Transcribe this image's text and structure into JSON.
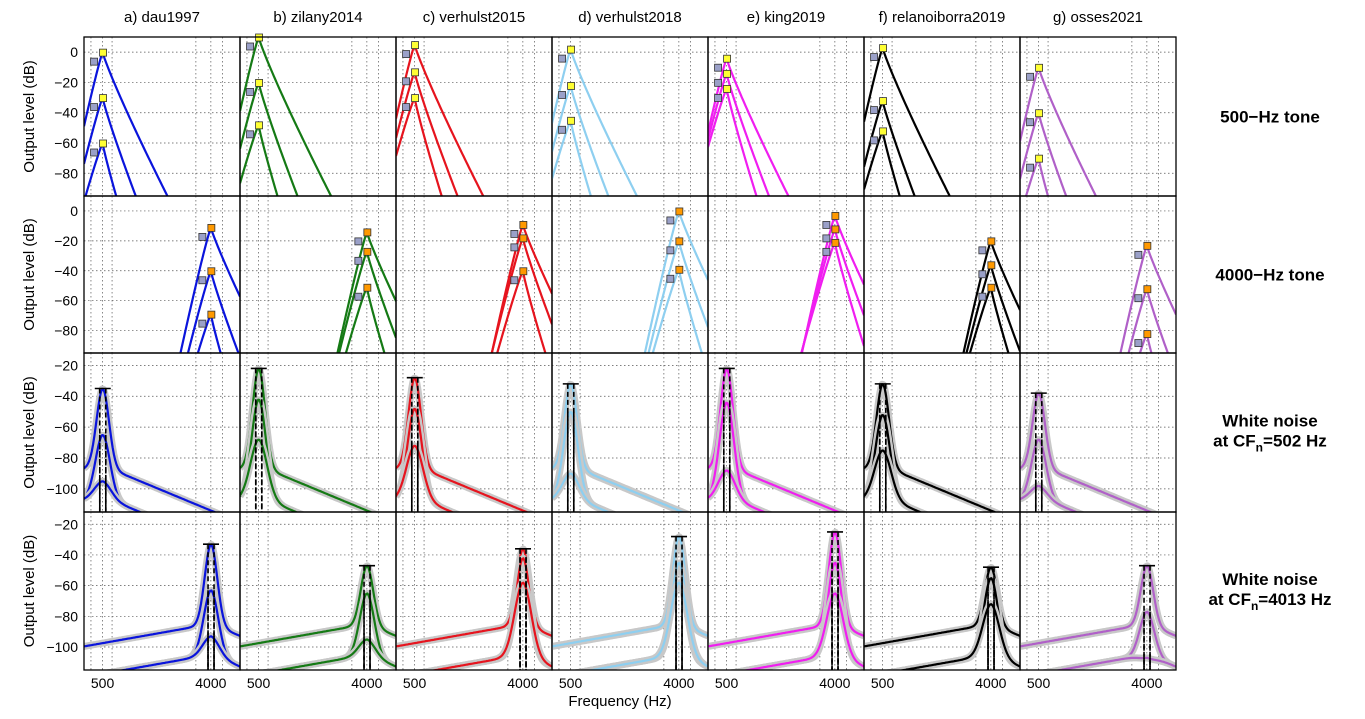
{
  "chart_data": {
    "type": "line",
    "xlabel": "Frequency (Hz)",
    "ylabel": "Output level (dB)",
    "x_scale": "log",
    "x_ticks": [
      "500",
      "4000"
    ],
    "x_gridlines": [
      400,
      500,
      600,
      3000,
      4000,
      5000
    ],
    "grid": true,
    "models": [
      {
        "label": "a) dau1997",
        "color": "#0a14dc"
      },
      {
        "label": "b) zilany2014",
        "color": "#157a15"
      },
      {
        "label": "c) verhulst2015",
        "color": "#e6141e"
      },
      {
        "label": "d) verhulst2018",
        "color": "#8ecff0"
      },
      {
        "label": "e) king2019",
        "color": "#f01ef0"
      },
      {
        "label": "f) relanoiborra2019",
        "color": "#000000"
      },
      {
        "label": "g) osses2021",
        "color": "#b060c8"
      }
    ],
    "rows": [
      {
        "line1": "500−Hz tone",
        "line2": "",
        "line2_sub": "",
        "line2_tail": "",
        "ylim": [
          -95,
          10
        ],
        "y_ticks": [
          "0",
          "−20",
          "−40",
          "−60",
          "−80"
        ],
        "stim": "tone",
        "peak_freq": 500,
        "peaks": {
          "a) dau1997": [
            0,
            -30,
            -60
          ],
          "b) zilany2014": [
            10,
            -20,
            -48
          ],
          "c) verhulst2015": [
            5,
            -13,
            -30
          ],
          "d) verhulst2018": [
            2,
            -22,
            -45
          ],
          "e) king2019": [
            -4,
            -14,
            -24
          ],
          "f) relanoiborra2019": [
            3,
            -32,
            -52
          ],
          "g) osses2021": [
            -10,
            -40,
            -70
          ]
        }
      },
      {
        "line1": "4000−Hz tone",
        "line2": "",
        "line2_sub": "",
        "line2_tail": "",
        "ylim": [
          -95,
          10
        ],
        "y_ticks": [
          "0",
          "−20",
          "−40",
          "−60",
          "−80"
        ],
        "stim": "tone",
        "peak_freq": 4000,
        "peaks": {
          "a) dau1997": [
            -11,
            -40,
            -69
          ],
          "b) zilany2014": [
            -14,
            -27,
            -51
          ],
          "c) verhulst2015": [
            -9,
            -18,
            -40
          ],
          "d) verhulst2018": [
            0,
            -20,
            -39
          ],
          "e) king2019": [
            -3,
            -12,
            -21
          ],
          "f) relanoiborra2019": [
            -20,
            -36,
            -51
          ],
          "g) osses2021": [
            -23,
            -52,
            -82
          ]
        }
      },
      {
        "line1": "White noise",
        "line2": "at CF",
        "line2_sub": "n",
        "line2_tail": "=502 Hz",
        "ylim": [
          -115,
          -12
        ],
        "y_ticks": [
          "−20",
          "−40",
          "−60",
          "−80",
          "−100"
        ],
        "stim": "noise",
        "peak_freq": 502,
        "peaks": {
          "a) dau1997": [
            -35,
            -65,
            -95
          ],
          "b) zilany2014": [
            -22,
            -42,
            -68
          ],
          "c) verhulst2015": [
            -28,
            -48,
            -72
          ],
          "d) verhulst2018": [
            -32,
            -50,
            -90
          ],
          "e) king2019": [
            -22,
            -44,
            -88
          ],
          "f) relanoiborra2019": [
            -32,
            -52,
            -75
          ],
          "g) osses2021": [
            -38,
            -68,
            -98
          ]
        }
      },
      {
        "line1": "White noise",
        "line2": "at CF",
        "line2_sub": "n",
        "line2_tail": "=4013 Hz",
        "ylim": [
          -115,
          -12
        ],
        "y_ticks": [
          "−20",
          "−40",
          "−60",
          "−80",
          "−100"
        ],
        "stim": "noise",
        "peak_freq": 4013,
        "peaks": {
          "a) dau1997": [
            -33,
            -63,
            -93
          ],
          "b) zilany2014": [
            -47,
            -65,
            -95
          ],
          "c) verhulst2015": [
            -36,
            -42,
            -58
          ],
          "d) verhulst2018": [
            -28,
            -45,
            -58
          ],
          "e) king2019": [
            -25,
            -45,
            -65
          ],
          "f) relanoiborra2019": [
            -48,
            -55,
            -72
          ],
          "g) osses2021": [
            -47,
            -77,
            -107
          ]
        }
      }
    ]
  }
}
